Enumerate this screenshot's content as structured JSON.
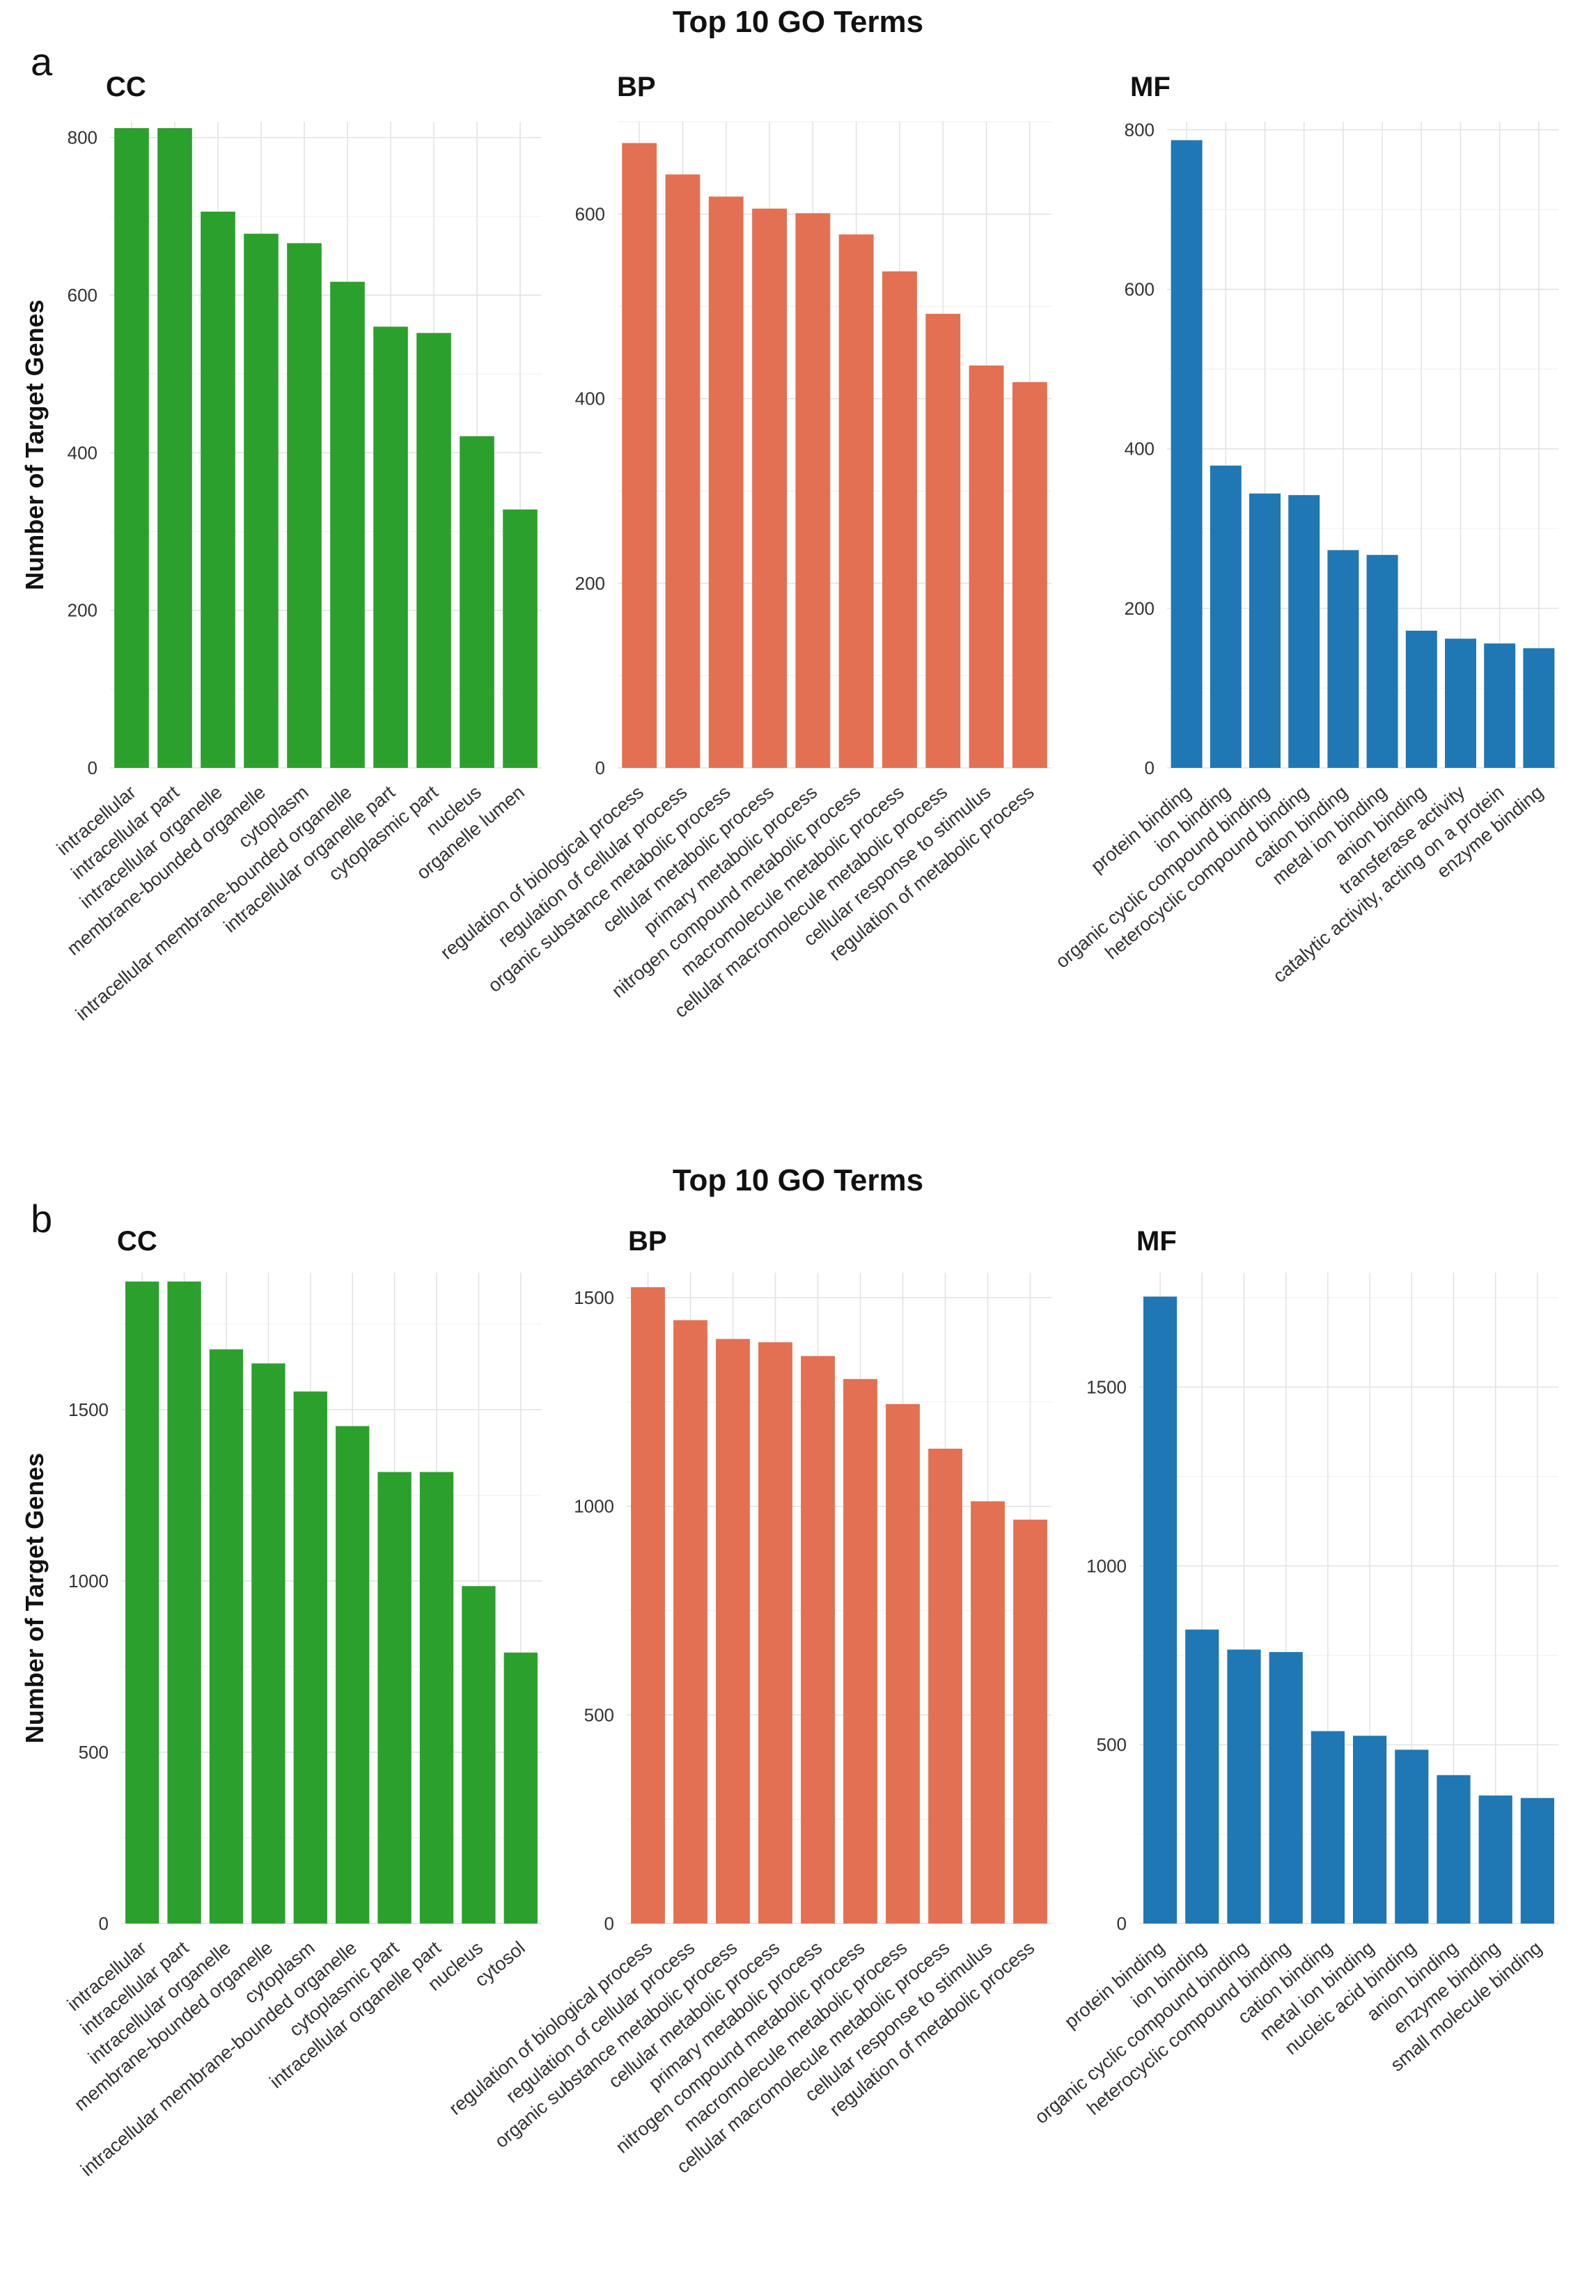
{
  "colors": {
    "CC": "#2ca02c",
    "BP": "#e37052",
    "MF": "#1f77b4"
  },
  "panels": [
    {
      "letter": "a",
      "title": "Top 10 GO Terms",
      "ylabel": "Number of Target Genes",
      "chart_data": [
        {
          "type": "bar",
          "title": "CC",
          "color": "#2ca02c",
          "ylim": [
            0,
            820
          ],
          "yticks": [
            0,
            200,
            400,
            600,
            800
          ],
          "categories": [
            "intracellular",
            "intracellular part",
            "intracellular organelle",
            "membrane-bounded organelle",
            "cytoplasm",
            "intracellular membrane-bounded organelle",
            "intracellular organelle part",
            "cytoplasmic part",
            "nucleus",
            "organelle lumen"
          ],
          "values": [
            812,
            812,
            706,
            678,
            666,
            617,
            560,
            552,
            421,
            328
          ]
        },
        {
          "type": "bar",
          "title": "BP",
          "color": "#e37052",
          "ylim": [
            0,
            700
          ],
          "yticks": [
            0,
            200,
            400,
            600
          ],
          "categories": [
            "regulation of biological process",
            "regulation of cellular process",
            "organic substance metabolic process",
            "cellular metabolic process",
            "primary metabolic process",
            "nitrogen compound metabolic process",
            "macromolecule metabolic process",
            "cellular macromolecule metabolic process",
            "cellular response to stimulus",
            "regulation of metabolic process"
          ],
          "values": [
            677,
            643,
            619,
            606,
            601,
            578,
            538,
            492,
            436,
            418
          ]
        },
        {
          "type": "bar",
          "title": "MF",
          "color": "#1f77b4",
          "ylim": [
            0,
            810
          ],
          "yticks": [
            0,
            200,
            400,
            600,
            800
          ],
          "categories": [
            "protein binding",
            "ion binding",
            "organic cyclic compound binding",
            "heterocyclic compound binding",
            "cation binding",
            "metal ion binding",
            "anion binding",
            "transferase activity",
            "catalytic activity, acting on a protein",
            "enzyme binding"
          ],
          "values": [
            787,
            379,
            344,
            342,
            273,
            267,
            172,
            162,
            156,
            150
          ]
        }
      ]
    },
    {
      "letter": "b",
      "title": "Top 10 GO Terms",
      "ylabel": "Number of Target Genes",
      "chart_data": [
        {
          "type": "bar",
          "title": "CC",
          "color": "#2ca02c",
          "ylim": [
            0,
            1900
          ],
          "yticks": [
            0,
            500,
            1000,
            1500
          ],
          "categories": [
            "intracellular",
            "intracellular part",
            "intracellular organelle",
            "membrane-bounded organelle",
            "cytoplasm",
            "intracellular membrane-bounded organelle",
            "cytoplasmic part",
            "intracellular organelle part",
            "nucleus",
            "cytosol"
          ],
          "values": [
            1874,
            1874,
            1676,
            1635,
            1553,
            1452,
            1318,
            1318,
            985,
            791
          ]
        },
        {
          "type": "bar",
          "title": "BP",
          "color": "#e37052",
          "ylim": [
            0,
            1560
          ],
          "yticks": [
            0,
            500,
            1000,
            1500
          ],
          "categories": [
            "regulation of biological process",
            "regulation of cellular process",
            "organic substance metabolic process",
            "cellular metabolic process",
            "primary metabolic process",
            "nitrogen compound metabolic process",
            "macromolecule metabolic process",
            "cellular macromolecule metabolic process",
            "cellular response to stimulus",
            "regulation of metabolic process"
          ],
          "values": [
            1525,
            1446,
            1401,
            1393,
            1360,
            1305,
            1245,
            1138,
            1012,
            968
          ]
        },
        {
          "type": "bar",
          "title": "MF",
          "color": "#1f77b4",
          "ylim": [
            0,
            1820
          ],
          "yticks": [
            0,
            500,
            1000,
            1500
          ],
          "categories": [
            "protein binding",
            "ion binding",
            "organic cyclic compound binding",
            "heterocyclic compound binding",
            "cation binding",
            "metal ion binding",
            "nucleic acid binding",
            "anion binding",
            "enzyme binding",
            "small molecule binding"
          ],
          "values": [
            1753,
            822,
            766,
            759,
            538,
            525,
            486,
            415,
            358,
            351
          ]
        }
      ]
    }
  ]
}
